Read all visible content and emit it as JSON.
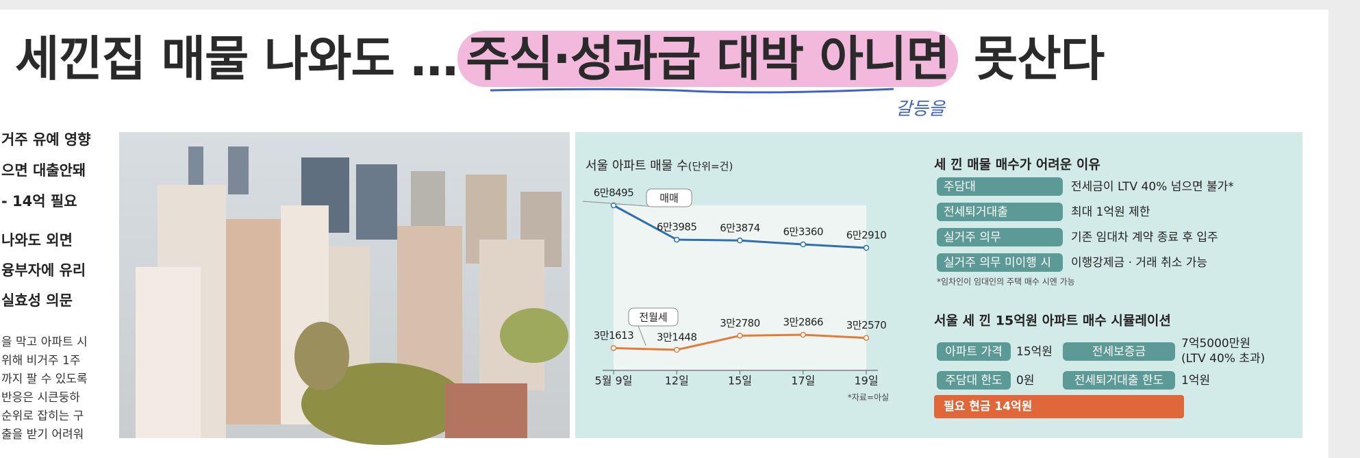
{
  "headline": {
    "before": "세낀집 매물 나와도 …",
    "highlight": "주식·성과급 대박 아니면",
    "after": "못산다"
  },
  "annotation": "갈등을",
  "side_column": {
    "subheads": [
      "거주 유예 영향",
      "으면 대출안돼",
      "- 14억 필요",
      "나와도 외면",
      "융부자에 유리",
      "실효성 의문"
    ],
    "body": [
      "을 막고 아파트 시",
      "위해 비거주 1주",
      "까지 팔 수 있도록",
      "반응은 시큰둥하",
      "순위로 잡히는 구",
      "출을 받기 어려워"
    ]
  },
  "chart_data": {
    "type": "line",
    "title": "서울 아파트 매물 수",
    "unit": "(단위=건)",
    "categories": [
      "5월 9일",
      "12일",
      "15일",
      "17일",
      "19일"
    ],
    "series": [
      {
        "name": "매매",
        "color": "#2f6fae",
        "values": [
          68495,
          63985,
          63874,
          63360,
          62910
        ],
        "value_labels": [
          "6만8495",
          "6만3985",
          "6만3874",
          "6만3360",
          "6만2910"
        ]
      },
      {
        "name": "전월세",
        "color": "#e07b3a",
        "values": [
          31613,
          31448,
          32780,
          32866,
          32570
        ],
        "value_labels": [
          "3만1613",
          "3만1448",
          "3만2780",
          "3만2866",
          "3만2570"
        ]
      }
    ],
    "source": "*자료=아실"
  },
  "reasons": {
    "title": "세 낀 매물 매수가 어려운 이유",
    "rows": [
      [
        "주담대",
        "전세금이 LTV 40% 넘으면 불가*"
      ],
      [
        "전세퇴거대출",
        "최대 1억원 제한"
      ],
      [
        "실거주 의무",
        "기존 임대차 계약 종료 후 입주"
      ],
      [
        "실거주 의무 미이행 시",
        "이행강제금 · 거래 취소 가능"
      ]
    ],
    "footnote": "*임차인이 임대인의 주택 매수 시엔 가능"
  },
  "simulation": {
    "title": "서울 세 낀 15억원 아파트 매수 시뮬레이션",
    "items": [
      [
        "아파트 가격",
        "15억원"
      ],
      [
        "전세보증금",
        "7억5000만원",
        "(LTV 40% 초과)"
      ],
      [
        "주담대 한도",
        "0원"
      ],
      [
        "전세퇴거대출 한도",
        "1억원"
      ]
    ],
    "total": "필요 현금 14억원"
  }
}
